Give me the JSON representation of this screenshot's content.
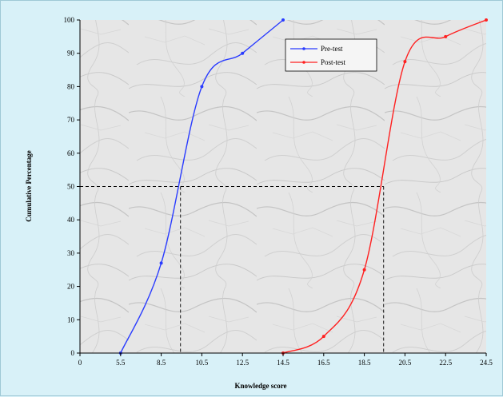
{
  "chart_data": {
    "type": "line",
    "title": "",
    "xlabel": "Knowledge score",
    "ylabel": "Cumulative  Percentage",
    "x_ticks": [
      "0",
      "5.5",
      "8.5",
      "10.5",
      "12.5",
      "14.5",
      "16.5",
      "18.5",
      "20.5",
      "22.5",
      "24.5"
    ],
    "y_ticks": [
      "0",
      "10",
      "20",
      "30",
      "40",
      "50",
      "60",
      "70",
      "80",
      "90",
      "100"
    ],
    "ylim": [
      0,
      100
    ],
    "grid": false,
    "legend_position": "top-right",
    "series": [
      {
        "name": "Pre-test",
        "color": "#2a3cff",
        "points": [
          {
            "x": "5.5",
            "y": 0
          },
          {
            "x": "8.5",
            "y": 27
          },
          {
            "x": "10.5",
            "y": 80
          },
          {
            "x": "12.5",
            "y": 90
          },
          {
            "x": "14.5",
            "y": 100
          }
        ]
      },
      {
        "name": "Post-test",
        "color": "#ff2020",
        "points": [
          {
            "x": "14.5",
            "y": 0
          },
          {
            "x": "16.5",
            "y": 5
          },
          {
            "x": "18.5",
            "y": 25
          },
          {
            "x": "20.5",
            "y": 87.5
          },
          {
            "x": "22.5",
            "y": 95
          },
          {
            "x": "24.5",
            "y": 100
          }
        ]
      }
    ],
    "reference_lines": [
      {
        "y": 50,
        "x": 9.45,
        "series": "Pre-test"
      },
      {
        "y": 50,
        "x": 19.45,
        "series": "Post-test"
      }
    ]
  }
}
